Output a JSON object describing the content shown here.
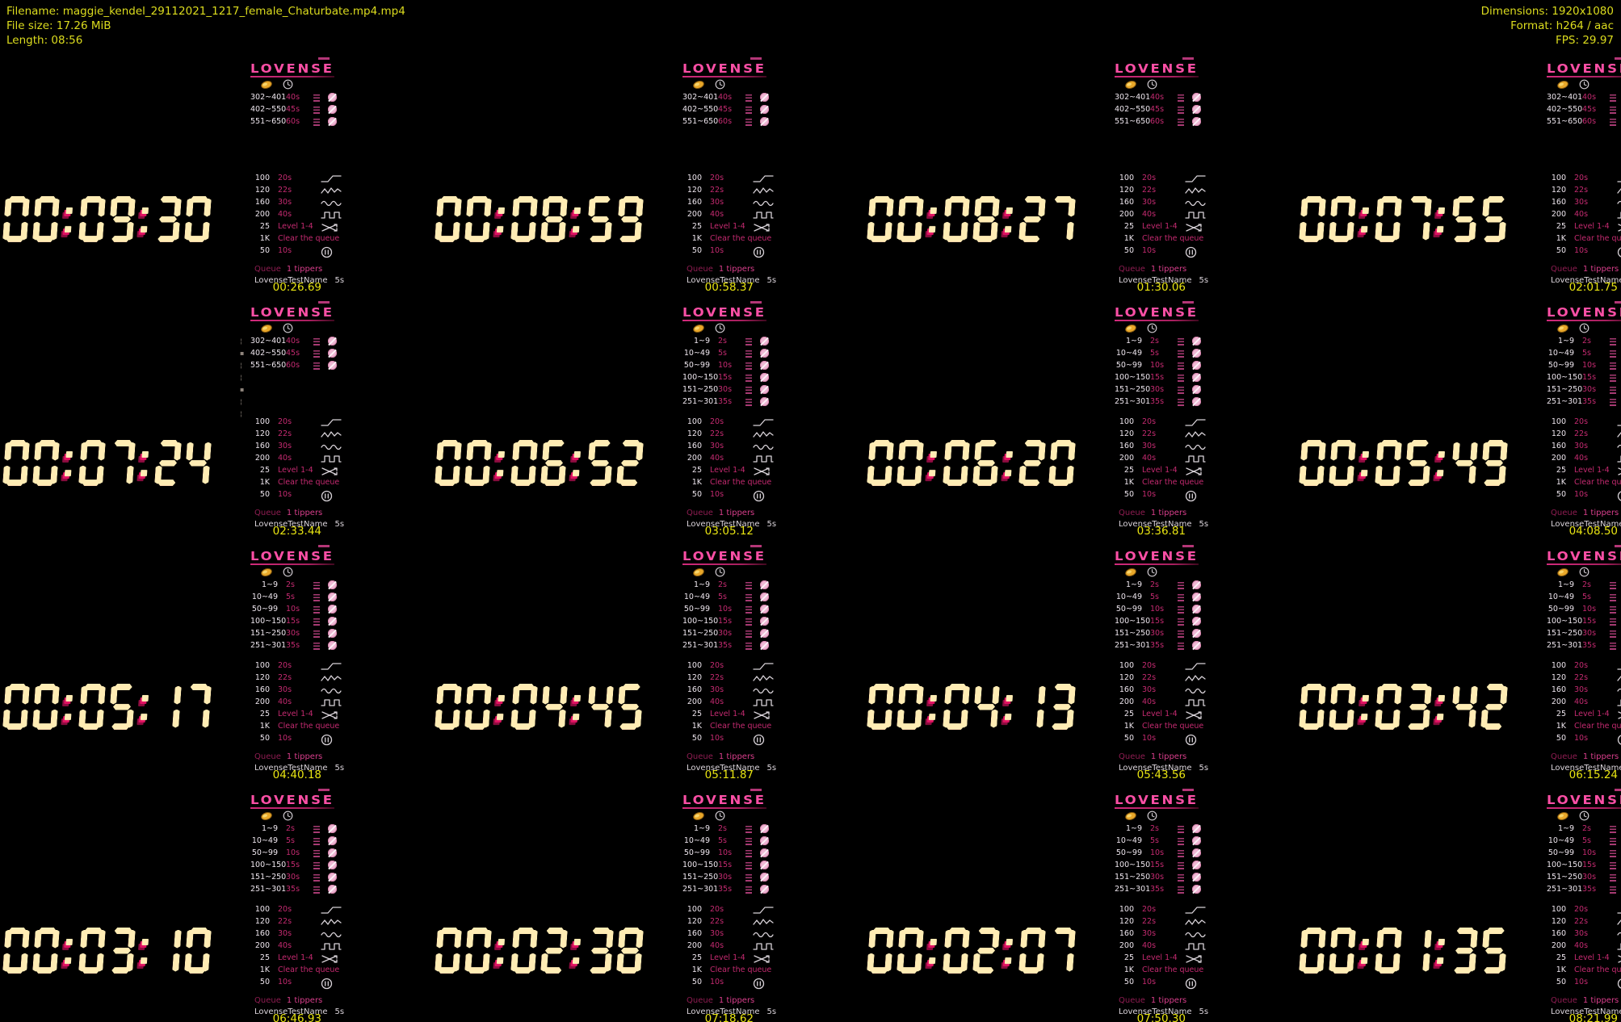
{
  "header": {
    "left": [
      "Filename: maggie_kendel_29112021_1217_female_Chaturbate.mp4.mp4",
      "File size: 17.26 MiB",
      "Length: 08:56"
    ],
    "right": [
      "Dimensions: 1920x1080",
      "Format: h264 / aac",
      "FPS: 29.97"
    ]
  },
  "colors": {
    "background": "#000000",
    "header_text": "#dcdc1e",
    "timestamp_text": "#e8e412",
    "brand_pink": "#fb4fa5",
    "menu_value_pink": "#c42a70",
    "clock_face": "#ffecb4",
    "clock_extrude": "#e21263"
  },
  "overlay": {
    "brand": "LOVENSE",
    "header_icons": [
      "coin-icon",
      "timer-icon"
    ],
    "tip_menu_a": [
      {
        "tier": "302~401",
        "duration": "40s"
      },
      {
        "tier": "402~550",
        "duration": "45s"
      },
      {
        "tier": "551~650",
        "duration": "60s"
      }
    ],
    "tip_menu_b": [
      {
        "tier": "1~9",
        "duration": "2s"
      },
      {
        "tier": "10~49",
        "duration": "5s"
      },
      {
        "tier": "50~99",
        "duration": "10s"
      },
      {
        "tier": "100~150",
        "duration": "15s"
      },
      {
        "tier": "151~250",
        "duration": "30s"
      },
      {
        "tier": "251~301",
        "duration": "35s"
      }
    ],
    "patterns": [
      {
        "amount": "100",
        "value": "20s",
        "icon": "ramp"
      },
      {
        "amount": "120",
        "value": "22s",
        "icon": "pulse"
      },
      {
        "amount": "160",
        "value": "30s",
        "icon": "wave"
      },
      {
        "amount": "200",
        "value": "40s",
        "icon": "square"
      },
      {
        "amount": "25",
        "value": "Level 1-4",
        "icon": "shuffle"
      },
      {
        "amount": "1K",
        "value": "Clear the queue",
        "icon": ""
      },
      {
        "amount": "50",
        "value": "10s",
        "icon": "pause"
      }
    ],
    "queue_label": "Queue",
    "queue_value": "1 tippers",
    "tipper_name": "LovenseTestName",
    "tipper_value": "5s",
    "chat_strip_glyphs": [
      "¦",
      "▪",
      "¦",
      "¦",
      "▪",
      "¦",
      "¦"
    ]
  },
  "frames": [
    {
      "clock": "00:09:30",
      "timestamp": "00:26.69",
      "menu": "a",
      "chat_strip": false
    },
    {
      "clock": "00:08:59",
      "timestamp": "00:58.37",
      "menu": "a",
      "chat_strip": false
    },
    {
      "clock": "00:08:27",
      "timestamp": "01:30.06",
      "menu": "a",
      "chat_strip": false
    },
    {
      "clock": "00:07:55",
      "timestamp": "02:01.75",
      "menu": "a",
      "chat_strip": false
    },
    {
      "clock": "00:07:24",
      "timestamp": "02:33.44",
      "menu": "a",
      "chat_strip": true
    },
    {
      "clock": "00:06:52",
      "timestamp": "03:05.12",
      "menu": "b",
      "chat_strip": false
    },
    {
      "clock": "00:06:20",
      "timestamp": "03:36.81",
      "menu": "b",
      "chat_strip": false
    },
    {
      "clock": "00:05:49",
      "timestamp": "04:08.50",
      "menu": "b",
      "chat_strip": false
    },
    {
      "clock": "00:05:17",
      "timestamp": "04:40.18",
      "menu": "b",
      "chat_strip": false
    },
    {
      "clock": "00:04:45",
      "timestamp": "05:11.87",
      "menu": "b",
      "chat_strip": false
    },
    {
      "clock": "00:04:13",
      "timestamp": "05:43.56",
      "menu": "b",
      "chat_strip": false
    },
    {
      "clock": "00:03:42",
      "timestamp": "06:15.24",
      "menu": "b",
      "chat_strip": false
    },
    {
      "clock": "00:03:10",
      "timestamp": "06:46.93",
      "menu": "b",
      "chat_strip": false
    },
    {
      "clock": "00:02:38",
      "timestamp": "07:18.62",
      "menu": "b",
      "chat_strip": false
    },
    {
      "clock": "00:02:07",
      "timestamp": "07:50.30",
      "menu": "b",
      "chat_strip": false
    },
    {
      "clock": "00:01:35",
      "timestamp": "08:21.99",
      "menu": "b",
      "chat_strip": false
    }
  ]
}
